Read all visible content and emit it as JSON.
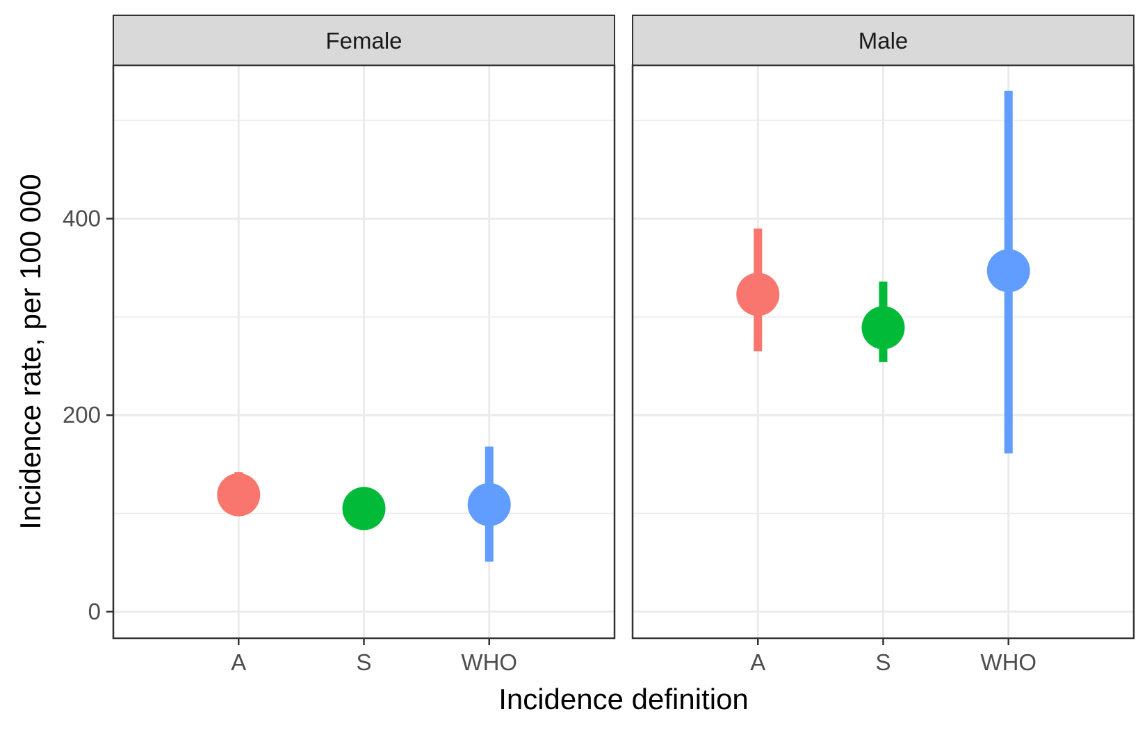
{
  "chart_data": {
    "type": "scatter",
    "subtype": "pointrange-faceted",
    "xlabel": "Incidence definition",
    "ylabel": "Incidence rate, per 100 000",
    "categories": [
      "A",
      "S",
      "WHO"
    ],
    "ylim": [
      -27,
      556
    ],
    "yticks": [
      0,
      200,
      400
    ],
    "grid": true,
    "category_colors": {
      "A": "#F8766D",
      "S": "#00BA38",
      "WHO": "#619CFF"
    },
    "panel_background": "#ffffff",
    "strip_background": "#d9d9d9",
    "facets": [
      {
        "label": "Female",
        "points": [
          {
            "category": "A",
            "estimate": 119,
            "lower": 98,
            "upper": 142
          },
          {
            "category": "S",
            "estimate": 105,
            "lower": 95,
            "upper": 117
          },
          {
            "category": "WHO",
            "estimate": 109,
            "lower": 51,
            "upper": 168
          }
        ]
      },
      {
        "label": "Male",
        "points": [
          {
            "category": "A",
            "estimate": 323,
            "lower": 265,
            "upper": 390
          },
          {
            "category": "S",
            "estimate": 289,
            "lower": 254,
            "upper": 336
          },
          {
            "category": "WHO",
            "estimate": 347,
            "lower": 161,
            "upper": 530
          }
        ]
      }
    ]
  }
}
